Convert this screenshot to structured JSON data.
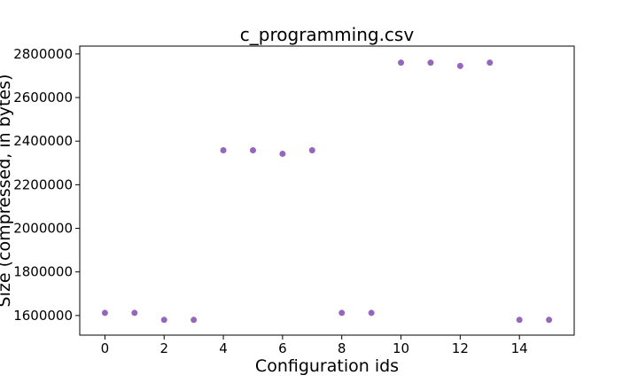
{
  "chart_data": {
    "type": "scatter",
    "title": "c_programming.csv",
    "xlabel": "Configuration ids",
    "ylabel": "Size (compressed, in bytes)",
    "xlim": [
      -0.85,
      15.85
    ],
    "ylim": [
      1510000,
      2836000
    ],
    "xticks": [
      0,
      2,
      4,
      6,
      8,
      10,
      12,
      14
    ],
    "yticks": [
      1600000,
      1800000,
      2000000,
      2200000,
      2400000,
      2600000,
      2800000
    ],
    "grid": false,
    "marker_color": "#9467bd",
    "series": [
      {
        "x": [
          0,
          1,
          2,
          3,
          4,
          5,
          6,
          7,
          8,
          9,
          10,
          11,
          12,
          13,
          14,
          15
        ],
        "y": [
          1612000,
          1612000,
          1580000,
          1580000,
          2358000,
          2358000,
          2342000,
          2358000,
          1612000,
          1612000,
          2760000,
          2760000,
          2745000,
          2760000,
          1580000,
          1580000
        ]
      }
    ]
  }
}
